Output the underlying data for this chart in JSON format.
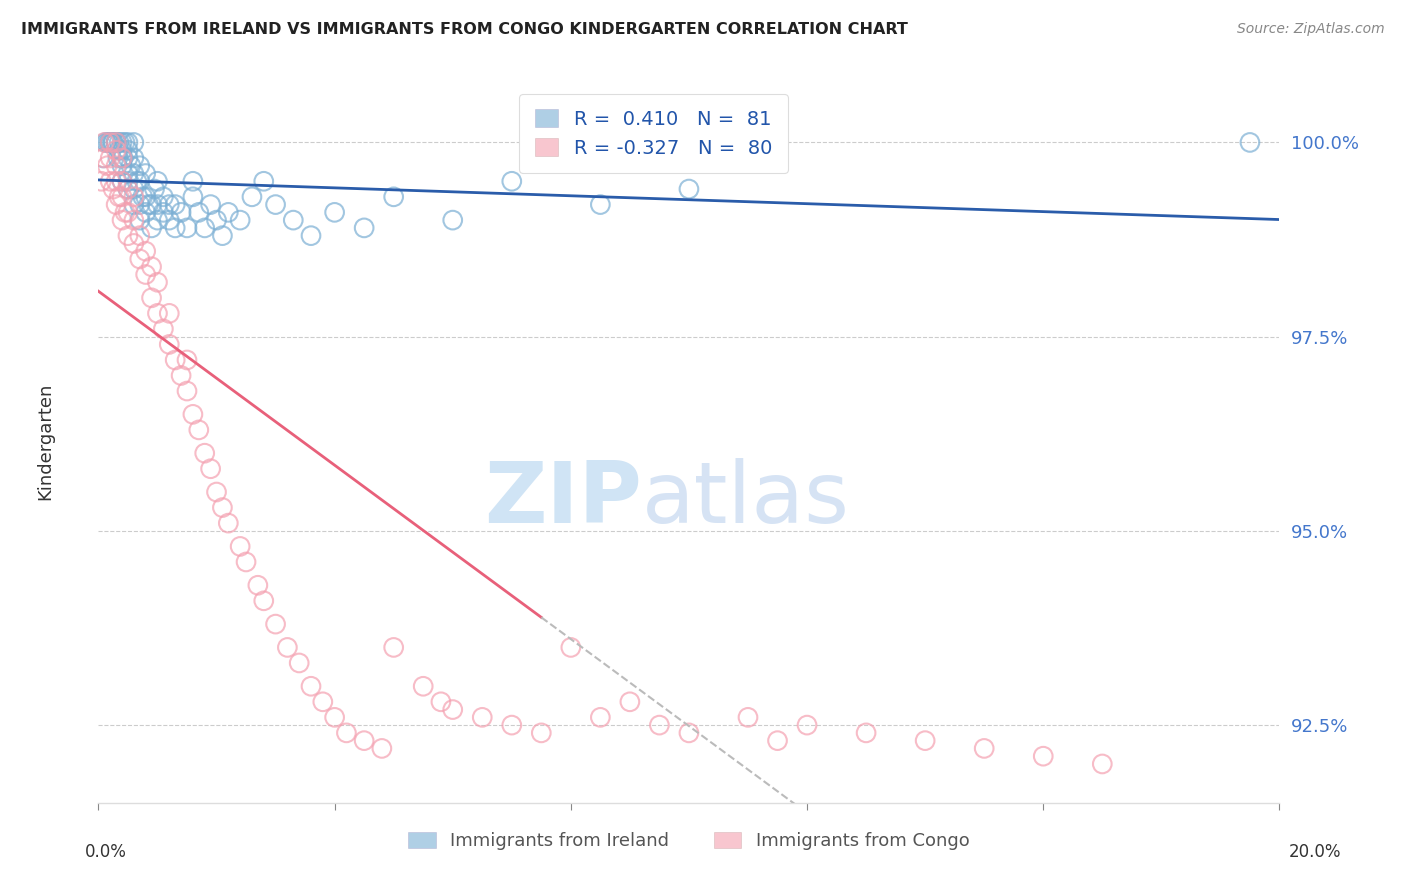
{
  "title": "IMMIGRANTS FROM IRELAND VS IMMIGRANTS FROM CONGO KINDERGARTEN CORRELATION CHART",
  "source": "Source: ZipAtlas.com",
  "ylabel": "Kindergarten",
  "yticks": [
    92.5,
    95.0,
    97.5,
    100.0
  ],
  "ytick_labels": [
    "92.5%",
    "95.0%",
    "97.5%",
    "100.0%"
  ],
  "xmin": 0.0,
  "xmax": 0.2,
  "ymin": 91.5,
  "ymax": 100.8,
  "ireland_color": "#7bafd4",
  "congo_color": "#f4a0b0",
  "ireland_line_color": "#2a5caa",
  "congo_line_color": "#e8607a",
  "R_ireland": 0.41,
  "N_ireland": 81,
  "R_congo": -0.327,
  "N_congo": 80,
  "legend_label_ireland": "Immigrants from Ireland",
  "legend_label_congo": "Immigrants from Congo",
  "ireland_x": [
    0.0008,
    0.0012,
    0.0015,
    0.0018,
    0.002,
    0.002,
    0.0022,
    0.0025,
    0.0025,
    0.003,
    0.003,
    0.003,
    0.003,
    0.0033,
    0.0035,
    0.0035,
    0.004,
    0.004,
    0.004,
    0.004,
    0.004,
    0.0042,
    0.0045,
    0.005,
    0.005,
    0.005,
    0.005,
    0.005,
    0.005,
    0.0055,
    0.006,
    0.006,
    0.006,
    0.006,
    0.006,
    0.0065,
    0.007,
    0.007,
    0.007,
    0.007,
    0.0075,
    0.008,
    0.008,
    0.008,
    0.0085,
    0.009,
    0.009,
    0.0095,
    0.01,
    0.01,
    0.01,
    0.011,
    0.011,
    0.012,
    0.012,
    0.013,
    0.013,
    0.014,
    0.015,
    0.016,
    0.016,
    0.017,
    0.018,
    0.019,
    0.02,
    0.021,
    0.022,
    0.024,
    0.026,
    0.028,
    0.03,
    0.033,
    0.036,
    0.04,
    0.045,
    0.05,
    0.06,
    0.07,
    0.085,
    0.1,
    0.195
  ],
  "ireland_y": [
    99.8,
    100.0,
    100.0,
    100.0,
    100.0,
    100.0,
    100.0,
    100.0,
    100.0,
    100.0,
    100.0,
    100.0,
    100.0,
    99.8,
    99.9,
    100.0,
    99.5,
    99.7,
    99.8,
    99.9,
    100.0,
    99.8,
    100.0,
    99.4,
    99.5,
    99.6,
    99.8,
    99.9,
    100.0,
    99.7,
    99.2,
    99.4,
    99.6,
    99.8,
    100.0,
    99.5,
    99.0,
    99.2,
    99.5,
    99.7,
    99.3,
    99.1,
    99.3,
    99.6,
    99.2,
    98.9,
    99.2,
    99.4,
    99.0,
    99.2,
    99.5,
    99.1,
    99.3,
    99.0,
    99.2,
    98.9,
    99.2,
    99.1,
    98.9,
    99.3,
    99.5,
    99.1,
    98.9,
    99.2,
    99.0,
    98.8,
    99.1,
    99.0,
    99.3,
    99.5,
    99.2,
    99.0,
    98.8,
    99.1,
    98.9,
    99.3,
    99.0,
    99.5,
    99.2,
    99.4,
    100.0
  ],
  "congo_x": [
    0.0005,
    0.001,
    0.001,
    0.0015,
    0.002,
    0.002,
    0.002,
    0.0025,
    0.003,
    0.003,
    0.003,
    0.003,
    0.003,
    0.0035,
    0.004,
    0.004,
    0.004,
    0.004,
    0.0045,
    0.005,
    0.005,
    0.005,
    0.006,
    0.006,
    0.006,
    0.007,
    0.007,
    0.008,
    0.008,
    0.009,
    0.009,
    0.01,
    0.01,
    0.011,
    0.012,
    0.012,
    0.013,
    0.014,
    0.015,
    0.015,
    0.016,
    0.017,
    0.018,
    0.019,
    0.02,
    0.021,
    0.022,
    0.024,
    0.025,
    0.027,
    0.028,
    0.03,
    0.032,
    0.034,
    0.036,
    0.038,
    0.04,
    0.042,
    0.045,
    0.048,
    0.05,
    0.055,
    0.058,
    0.06,
    0.065,
    0.07,
    0.075,
    0.08,
    0.085,
    0.09,
    0.095,
    0.1,
    0.11,
    0.115,
    0.12,
    0.13,
    0.14,
    0.15,
    0.16,
    0.17
  ],
  "congo_y": [
    99.5,
    99.8,
    100.0,
    99.7,
    99.5,
    99.8,
    100.0,
    99.4,
    99.2,
    99.5,
    99.7,
    99.9,
    100.0,
    99.3,
    99.0,
    99.3,
    99.5,
    99.8,
    99.1,
    98.8,
    99.1,
    99.4,
    98.7,
    99.0,
    99.3,
    98.5,
    98.8,
    98.3,
    98.6,
    98.0,
    98.4,
    97.8,
    98.2,
    97.6,
    97.4,
    97.8,
    97.2,
    97.0,
    96.8,
    97.2,
    96.5,
    96.3,
    96.0,
    95.8,
    95.5,
    95.3,
    95.1,
    94.8,
    94.6,
    94.3,
    94.1,
    93.8,
    93.5,
    93.3,
    93.0,
    92.8,
    92.6,
    92.4,
    92.3,
    92.2,
    93.5,
    93.0,
    92.8,
    92.7,
    92.6,
    92.5,
    92.4,
    93.5,
    92.6,
    92.8,
    92.5,
    92.4,
    92.6,
    92.3,
    92.5,
    92.4,
    92.3,
    92.2,
    92.1,
    92.0
  ]
}
